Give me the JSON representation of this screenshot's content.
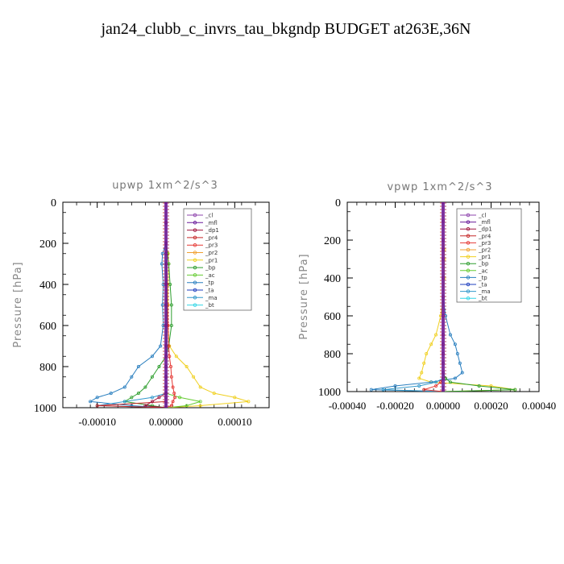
{
  "title": "jan24_clubb_c_invrs_tau_bkgndp  BUDGET at263E,36N",
  "legend_entries": [
    "_cl",
    "_mfl",
    "_dp1",
    "_pr4",
    "_pr3",
    "_pr2",
    "_pr1",
    "_bp",
    "_ac",
    "_tp",
    "_ta",
    "_ma",
    "_bt"
  ],
  "colors": {
    "_cl": "#8e44ad",
    "_mfl": "#6a1b9a",
    "_dp1": "#a0153e",
    "_pr4": "#c62828",
    "_pr3": "#e53935",
    "_pr2": "#f0a030",
    "_pr1": "#f0d020",
    "_bp": "#2e9e2e",
    "_ac": "#66cc33",
    "_tp": "#2a7fbf",
    "_ta": "#1f3fbf",
    "_ma": "#3399cc",
    "_bt": "#33d6e6"
  },
  "chart_data": [
    {
      "type": "line",
      "title": "upwp   1xm^2/s^3",
      "ylabel": "Pressure [hPa]",
      "xlim": [
        -0.00015,
        0.00015
      ],
      "ylim": [
        1000,
        0
      ],
      "xticks": [
        -0.0001,
        0.0,
        0.0001
      ],
      "xtick_labels": [
        "-0.00010",
        "0.00000",
        "0.00010"
      ],
      "yticks": [
        0,
        200,
        400,
        600,
        800,
        1000
      ],
      "ytick_labels": [
        "0",
        "200",
        "400",
        "600",
        "800",
        "1000"
      ],
      "legend_position": "top-right",
      "pressure": [
        0,
        100,
        200,
        250,
        300,
        400,
        500,
        600,
        700,
        750,
        800,
        850,
        900,
        930,
        950,
        970,
        990,
        1000
      ],
      "series": [
        {
          "name": "_pr1",
          "values": [
            0,
            0,
            0,
            3e-06,
            4e-06,
            3e-06,
            3e-06,
            3e-06,
            5e-06,
            1.5e-05,
            3e-05,
            4e-05,
            5e-05,
            7e-05,
            0.0001,
            0.00012,
            5e-05,
            0
          ]
        },
        {
          "name": "_tp",
          "values": [
            0,
            0,
            0,
            -5e-06,
            -6e-06,
            -4e-06,
            -5e-06,
            -4e-06,
            -8e-06,
            -2e-05,
            -4e-05,
            -5e-05,
            -6e-05,
            -8e-05,
            -0.0001,
            -0.00011,
            -5e-05,
            0
          ]
        },
        {
          "name": "_bp",
          "values": [
            0,
            0,
            0,
            2e-06,
            4e-06,
            6e-06,
            8e-06,
            8e-06,
            4e-06,
            0,
            -1e-05,
            -2e-05,
            -3e-05,
            -4e-05,
            -5e-05,
            -6e-05,
            -2e-05,
            0
          ]
        },
        {
          "name": "_ac",
          "values": [
            0,
            0,
            0,
            0,
            1e-06,
            1e-06,
            1e-06,
            1e-06,
            1e-06,
            0,
            0,
            0,
            0,
            0,
            2e-05,
            5e-05,
            3e-05,
            0
          ]
        },
        {
          "name": "_ma",
          "values": [
            0,
            0,
            0,
            0,
            0,
            0,
            0,
            0,
            0,
            0,
            0,
            0,
            0,
            0,
            -2e-05,
            -6e-05,
            -0.0001,
            0
          ]
        },
        {
          "name": "_pr3",
          "values": [
            0,
            0,
            0,
            0,
            0,
            1e-06,
            2e-06,
            3e-06,
            4e-06,
            5e-06,
            7e-06,
            8e-06,
            1e-05,
            1.2e-05,
            1.3e-05,
            1e-05,
            8e-06,
            0
          ]
        },
        {
          "name": "_pr4",
          "values": [
            0,
            0,
            0,
            0,
            0,
            0,
            0,
            0,
            0,
            0,
            0,
            0,
            0,
            0,
            0,
            0,
            -0.0001,
            0
          ]
        },
        {
          "name": "_dp1",
          "values": [
            0,
            0,
            0,
            0,
            0,
            0,
            0,
            0,
            0,
            0,
            0,
            0,
            0,
            0,
            -1e-05,
            -2e-05,
            -3e-05,
            0
          ]
        }
      ]
    },
    {
      "type": "line",
      "title": "vpwp   1xm^2/s^3",
      "ylabel": "Pressure [hPa]",
      "xlim": [
        -0.0004,
        0.0004
      ],
      "ylim": [
        1000,
        0
      ],
      "xticks": [
        -0.0004,
        -0.0002,
        0.0,
        0.0002,
        0.0004
      ],
      "xtick_labels": [
        "-0.00040",
        "-0.00020",
        "0.00000",
        "0.00020",
        "0.00040"
      ],
      "yticks": [
        0,
        200,
        400,
        600,
        800,
        1000
      ],
      "ytick_labels": [
        "0",
        "200",
        "400",
        "600",
        "800",
        "1000"
      ],
      "legend_position": "top-right",
      "pressure": [
        0,
        100,
        200,
        250,
        300,
        400,
        500,
        600,
        700,
        750,
        800,
        850,
        900,
        930,
        950,
        970,
        990,
        1000
      ],
      "series": [
        {
          "name": "_pr1",
          "values": [
            0,
            0,
            0,
            5e-06,
            5e-06,
            5e-06,
            0,
            -1e-05,
            -3e-05,
            -5e-05,
            -7e-05,
            -8e-05,
            -9e-05,
            -0.0001,
            -5e-05,
            0.0002,
            0.0003,
            0
          ]
        },
        {
          "name": "_tp",
          "values": [
            0,
            0,
            0,
            0,
            0,
            0,
            0,
            1e-05,
            3e-05,
            5e-05,
            6e-05,
            7e-05,
            8e-05,
            5e-05,
            -5e-05,
            -0.0002,
            -0.0003,
            0
          ]
        },
        {
          "name": "_bp",
          "values": [
            0,
            0,
            0,
            0,
            0,
            0,
            0,
            0,
            0,
            0,
            0,
            0,
            0,
            1e-05,
            3e-05,
            0.00015,
            0.0003,
            0
          ]
        },
        {
          "name": "_ma",
          "values": [
            0,
            0,
            0,
            0,
            0,
            0,
            0,
            0,
            0,
            0,
            0,
            0,
            0,
            0,
            -3e-05,
            -0.0001,
            -0.00025,
            0
          ]
        },
        {
          "name": "_pr3",
          "values": [
            0,
            0,
            0,
            0,
            0,
            0,
            0,
            0,
            0,
            0,
            0,
            0,
            0,
            0,
            -1e-05,
            -3e-05,
            -8e-05,
            0
          ]
        }
      ]
    }
  ]
}
